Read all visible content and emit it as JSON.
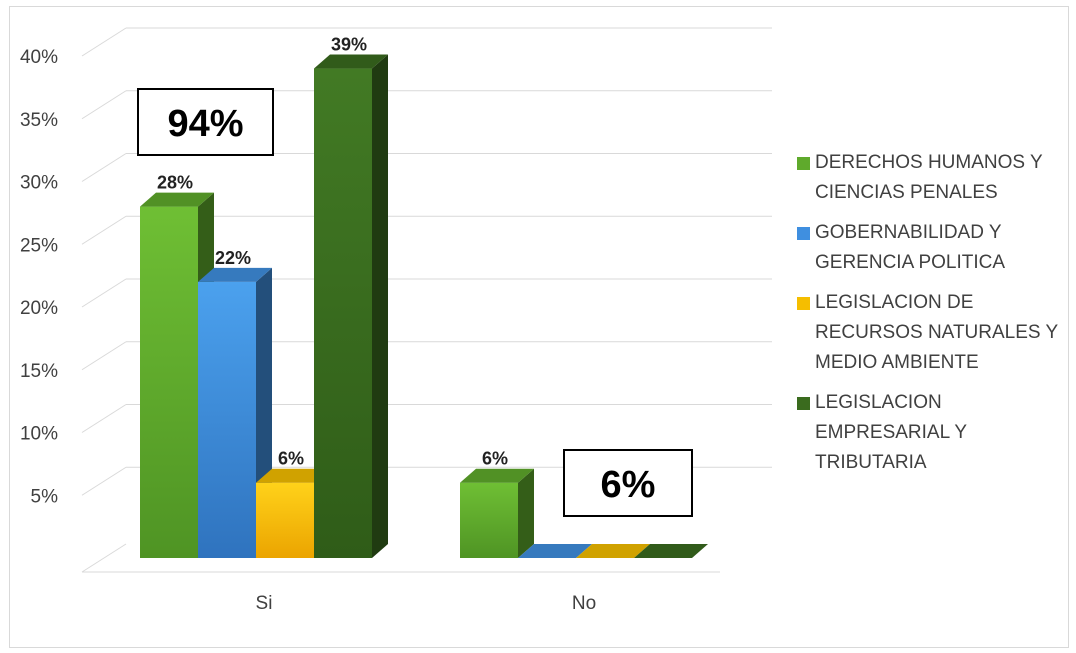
{
  "chart_data": {
    "type": "bar",
    "categories": [
      "Si",
      "No"
    ],
    "series": [
      {
        "name": "DERECHOS HUMANOS Y CIENCIAS PENALES",
        "color": "#5faa2c",
        "values": [
          28,
          6
        ],
        "labels": [
          "28%",
          "6%"
        ]
      },
      {
        "name": "GOBERNABILIDAD Y GERENCIA POLITICA",
        "color": "#3f8fe0",
        "values": [
          22,
          0
        ],
        "labels": [
          "22%",
          ""
        ]
      },
      {
        "name": "LEGISLACION DE RECURSOS NATURALES Y MEDIO AMBIENTE",
        "color": "#f5be00",
        "values": [
          6,
          0
        ],
        "labels": [
          "6%",
          ""
        ]
      },
      {
        "name": "LEGISLACION EMPRESARIAL Y TRIBUTARIA",
        "color": "#3a6b1e",
        "values": [
          39,
          0
        ],
        "labels": [
          "39%",
          ""
        ]
      }
    ],
    "y_ticks": [
      "5%",
      "10%",
      "15%",
      "20%",
      "25%",
      "30%",
      "35%",
      "40%"
    ],
    "ylim": [
      0,
      40
    ],
    "annotations": [
      "94%",
      "6%"
    ],
    "legend_position": "right",
    "grid": true,
    "style": "3d-clustered-column"
  }
}
